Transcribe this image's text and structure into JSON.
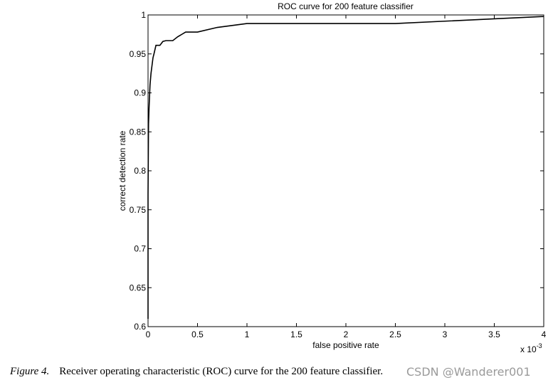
{
  "chart_data": {
    "type": "line",
    "title": "ROC curve for 200 feature classifier",
    "xlabel": "false positive rate",
    "ylabel": "correct detection rate",
    "x_multiplier_label": "x 10",
    "x_multiplier_exp": "-3",
    "xlim": [
      0,
      4
    ],
    "ylim": [
      0.6,
      1
    ],
    "xticks": [
      0,
      0.5,
      1,
      1.5,
      2,
      2.5,
      3,
      3.5,
      4
    ],
    "xtick_labels": [
      "0",
      "0.5",
      "1",
      "1.5",
      "2",
      "2.5",
      "3",
      "3.5",
      "4"
    ],
    "yticks": [
      0.6,
      0.65,
      0.7,
      0.75,
      0.8,
      0.85,
      0.9,
      0.95,
      1
    ],
    "ytick_labels": [
      "0.6",
      "0.65",
      "0.7",
      "0.75",
      "0.8",
      "0.85",
      "0.9",
      "0.95",
      "1"
    ],
    "grid": false,
    "series": [
      {
        "x": [
          0,
          0,
          0.005,
          0.01,
          0.015,
          0.02,
          0.03,
          0.04,
          0.05,
          0.06,
          0.08,
          0.1,
          0.12,
          0.15,
          0.18,
          0.25,
          0.3,
          0.38,
          0.5,
          0.7,
          1.0,
          2.0,
          2.5,
          3.0,
          3.5,
          4.0
        ],
        "y": [
          0.61,
          0.77,
          0.86,
          0.88,
          0.895,
          0.91,
          0.925,
          0.935,
          0.945,
          0.95,
          0.961,
          0.961,
          0.961,
          0.966,
          0.967,
          0.967,
          0.972,
          0.978,
          0.978,
          0.984,
          0.989,
          0.989,
          0.989,
          0.992,
          0.995,
          0.998
        ]
      }
    ]
  },
  "caption": {
    "figure_label": "Figure 4.",
    "text": "Receiver operating characteristic (ROC) curve for the 200 feature classifier."
  },
  "watermark": "CSDN @Wanderer001",
  "colors": {
    "line": "#000000",
    "background": "#ffffff",
    "watermark": "#9a9a9a"
  }
}
